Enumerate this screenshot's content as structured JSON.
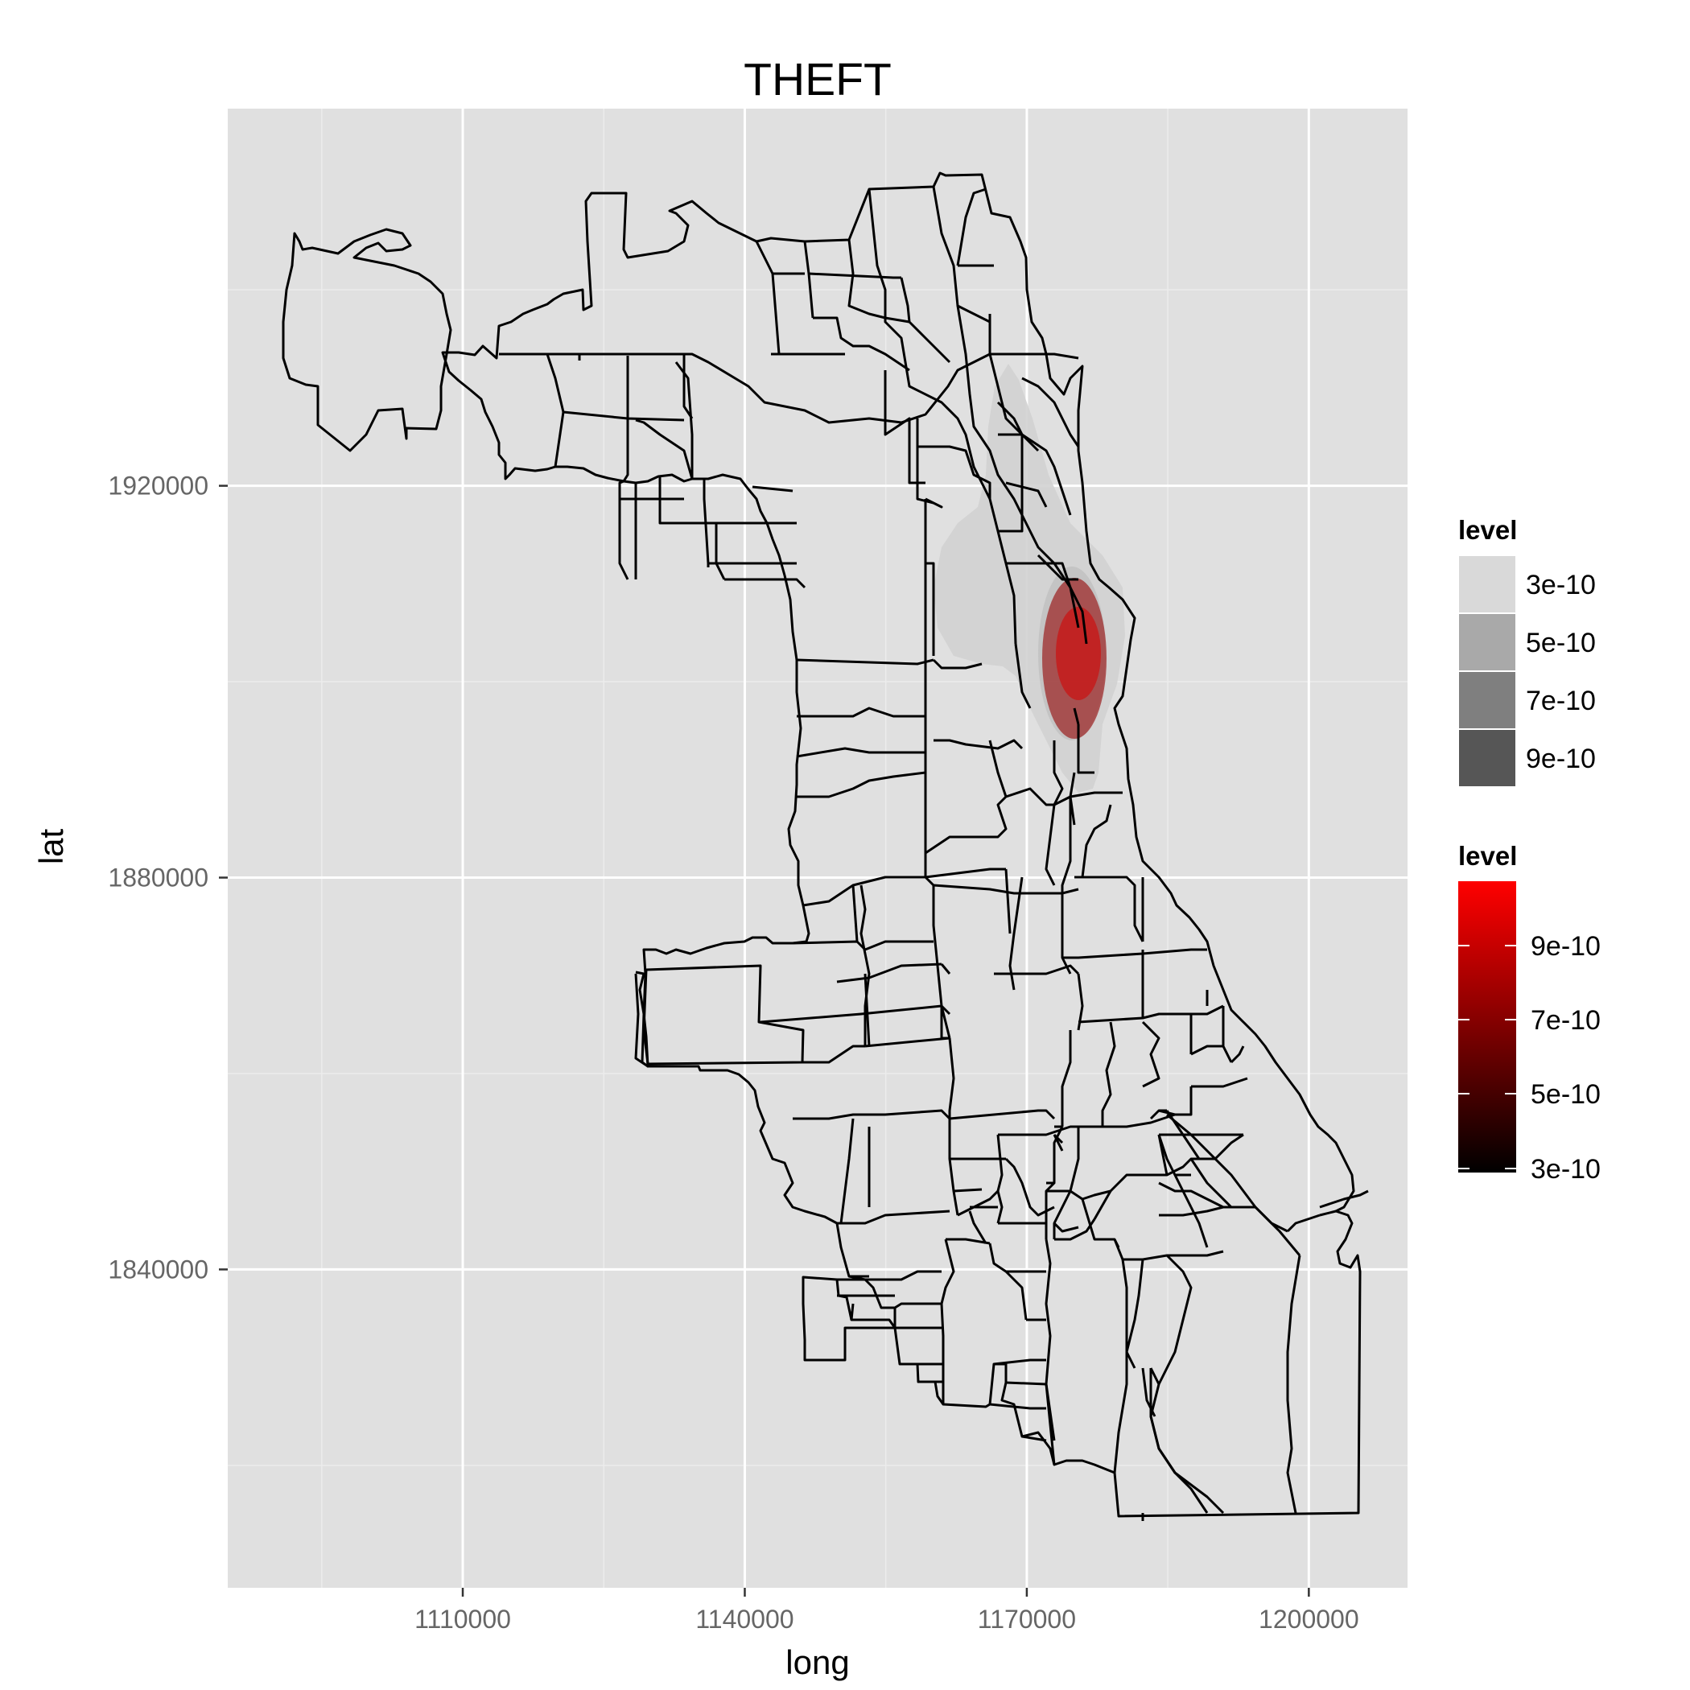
{
  "chart_data": {
    "type": "map-density",
    "title": "THEFT",
    "xlabel": "long",
    "ylabel": "lat",
    "xlim": [
      1085000,
      1210500
    ],
    "ylim": [
      1807500,
      1958500
    ],
    "x_ticks": [
      1110000,
      1140000,
      1170000,
      1200000
    ],
    "x_tick_labels": [
      "1110000",
      "1140000",
      "1170000",
      "1200000"
    ],
    "y_ticks": [
      1840000,
      1880000,
      1920000
    ],
    "y_tick_labels": [
      "1840000",
      "1880000",
      "1920000"
    ],
    "grid": true,
    "legend_placement": "right",
    "legends": [
      {
        "title": "level",
        "type": "fill-discrete",
        "entries": [
          {
            "label": "3e-10",
            "color": "#d9d9d9"
          },
          {
            "label": "5e-10",
            "color": "#a9a9a9"
          },
          {
            "label": "7e-10",
            "color": "#7f7f7f"
          },
          {
            "label": "9e-10",
            "color": "#565656"
          }
        ]
      },
      {
        "title": "level",
        "type": "colour-continuous",
        "low_color": "#000000",
        "high_color": "#ff0000",
        "labels": [
          "9e-10",
          "7e-10",
          "5e-10",
          "3e-10"
        ]
      }
    ],
    "density_center": {
      "long": 1176000,
      "lat": 1903000
    },
    "colors": {
      "panel_background": "#e0e0e0",
      "grid_major": "#ffffff",
      "grid_minor": "#ececec",
      "boundary": "#000000",
      "density_outer": "#d4d4d4",
      "density_inner": "#a02020",
      "density_core": "#cc2020"
    }
  }
}
